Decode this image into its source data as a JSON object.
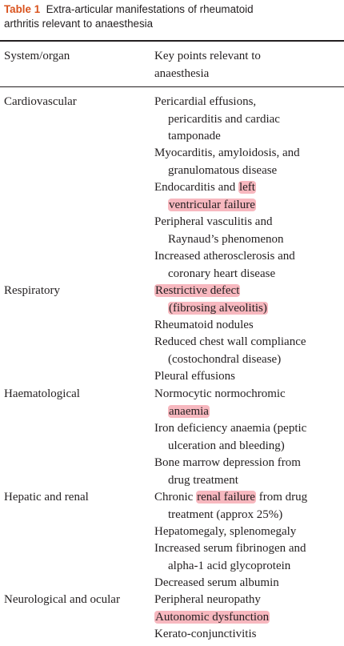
{
  "caption": {
    "label": "Table 1",
    "title_line1": "Extra-articular manifestations of rheumatoid",
    "title_line2": "arthritis relevant to anaesthesia"
  },
  "header": {
    "col1": "System/organ",
    "col2_line1": "Key points relevant to",
    "col2_line2": "anaesthesia"
  },
  "systems": {
    "cardiovascular": {
      "name": "Cardiovascular",
      "p1": {
        "l1": "Pericardial effusions,",
        "l2": "pericarditis and cardiac",
        "l3": "tamponade"
      },
      "p2": {
        "l1": "Myocarditis, amyloidosis, and",
        "l2": "granulomatous disease"
      },
      "p3": {
        "l1a": "Endocarditis and ",
        "l1hl": "left",
        "l2hl": "ventricular failure"
      },
      "p4": {
        "l1": "Peripheral vasculitis and",
        "l2": "Raynaud’s phenomenon"
      },
      "p5": {
        "l1": "Increased atherosclerosis and",
        "l2": "coronary heart disease"
      }
    },
    "respiratory": {
      "name": "Respiratory",
      "p1": {
        "l1hl": "Restrictive defect",
        "l2hl": "(fibrosing alveolitis)"
      },
      "p2": {
        "l1": "Rheumatoid nodules"
      },
      "p3": {
        "l1": "Reduced chest wall compliance",
        "l2": "(costochondral disease)"
      },
      "p4": {
        "l1": "Pleural effusions"
      }
    },
    "haematological": {
      "name": "Haematological",
      "p1": {
        "l1": "Normocytic normochromic",
        "l2hl": "anaemia"
      },
      "p2": {
        "l1": "Iron deficiency anaemia (peptic",
        "l2": "ulceration and bleeding)"
      },
      "p3": {
        "l1": "Bone marrow depression from",
        "l2": "drug treatment"
      }
    },
    "hepatic_renal": {
      "name": "Hepatic and renal",
      "p1": {
        "l1a": "Chronic ",
        "l1hl": "renal failure",
        "l1b": " from drug",
        "l2": "treatment (approx 25%)"
      },
      "p2": {
        "l1": "Hepatomegaly, splenomegaly"
      },
      "p3": {
        "l1": "Increased serum fibrinogen and",
        "l2": "alpha-1 acid glycoprotein"
      },
      "p4": {
        "l1": "Decreased serum albumin"
      }
    },
    "neuro_ocular": {
      "name": "Neurological and ocular",
      "p1": {
        "l1": "Peripheral neuropathy"
      },
      "p2": {
        "l1hl": "Autonomic dysfunction"
      },
      "p3": {
        "l1": "Kerato-conjunctivitis"
      }
    }
  }
}
